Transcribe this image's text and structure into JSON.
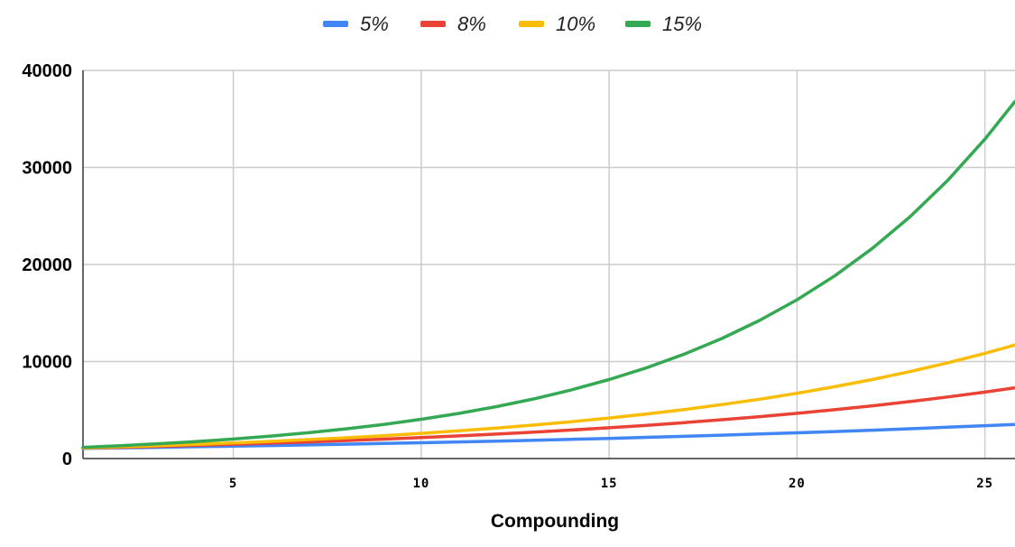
{
  "chart_data": {
    "type": "line",
    "title": "",
    "xlabel": "Compounding",
    "ylabel": "",
    "xlim": [
      1,
      25.8
    ],
    "ylim": [
      0,
      40000
    ],
    "x_ticks": [
      5,
      10,
      15,
      20,
      25
    ],
    "y_ticks": [
      0,
      10000,
      20000,
      30000,
      40000
    ],
    "grid": true,
    "legend_position": "top-center",
    "x": [
      1,
      2,
      3,
      4,
      5,
      6,
      7,
      8,
      9,
      10,
      11,
      12,
      13,
      14,
      15,
      16,
      17,
      18,
      19,
      20,
      21,
      22,
      23,
      24,
      25,
      25.8
    ],
    "series": [
      {
        "name": "5%",
        "color": "#4285f4",
        "values": [
          1050,
          1103,
          1158,
          1216,
          1276,
          1340,
          1407,
          1477,
          1551,
          1629,
          1710,
          1796,
          1886,
          1980,
          2079,
          2183,
          2292,
          2407,
          2527,
          2653,
          2786,
          2925,
          3072,
          3225,
          3386,
          3520
        ]
      },
      {
        "name": "8%",
        "color": "#ea4335",
        "values": [
          1080,
          1166,
          1260,
          1360,
          1469,
          1587,
          1714,
          1851,
          1999,
          2159,
          2332,
          2518,
          2720,
          2937,
          3172,
          3426,
          3700,
          3996,
          4316,
          4661,
          5034,
          5437,
          5871,
          6341,
          6848,
          7290
        ]
      },
      {
        "name": "10%",
        "color": "#fbbc04",
        "values": [
          1100,
          1210,
          1331,
          1464,
          1611,
          1772,
          1949,
          2144,
          2358,
          2594,
          2853,
          3138,
          3452,
          3797,
          4177,
          4595,
          5054,
          5560,
          6116,
          6727,
          7400,
          8140,
          8954,
          9850,
          10835,
          11700
        ]
      },
      {
        "name": "15%",
        "color": "#34a853",
        "values": [
          1150,
          1323,
          1521,
          1749,
          2011,
          2313,
          2660,
          3059,
          3518,
          4046,
          4652,
          5350,
          6153,
          7076,
          8137,
          9358,
          10761,
          12375,
          14232,
          16367,
          18822,
          21645,
          24891,
          28625,
          32919,
          36800
        ]
      }
    ]
  }
}
